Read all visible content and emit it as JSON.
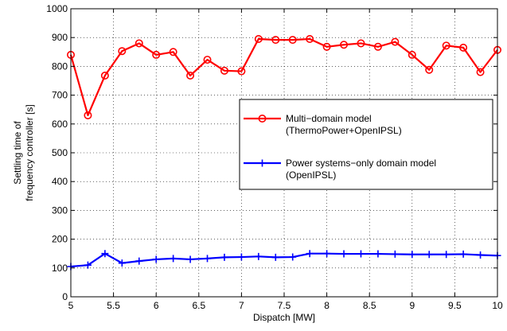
{
  "chart_data": {
    "type": "line",
    "title": "",
    "xlabel": "Dispatch [MW]",
    "ylabel": [
      "Settling time of",
      "frequency controller [s]"
    ],
    "xlim": [
      5,
      10
    ],
    "ylim": [
      0,
      1000
    ],
    "x_ticks": [
      5,
      5.5,
      6,
      6.5,
      7,
      7.5,
      8,
      8.5,
      9,
      9.5,
      10
    ],
    "x_tick_labels": [
      "5",
      "5.5",
      "6",
      "6.5",
      "7",
      "7.5",
      "8",
      "8.5",
      "9",
      "9.5",
      "10"
    ],
    "y_ticks": [
      0,
      100,
      200,
      300,
      400,
      500,
      600,
      700,
      800,
      900,
      1000
    ],
    "y_tick_labels": [
      "0",
      "100",
      "200",
      "300",
      "400",
      "500",
      "600",
      "700",
      "800",
      "900",
      "1000"
    ],
    "grid": true,
    "legend_position": "center-right",
    "x": [
      5,
      5.2,
      5.4,
      5.6,
      5.8,
      6,
      6.2,
      6.4,
      6.6,
      6.8,
      7,
      7.2,
      7.4,
      7.6,
      7.8,
      8,
      8.2,
      8.4,
      8.6,
      8.8,
      9,
      9.2,
      9.4,
      9.6,
      9.8,
      10
    ],
    "series": [
      {
        "name": [
          "Multi−domain model",
          "(ThermoPower+OpenIPSL)"
        ],
        "color": "#ff0000",
        "marker": "circle",
        "values": [
          840,
          630,
          768,
          853,
          880,
          840,
          850,
          768,
          823,
          785,
          783,
          895,
          892,
          892,
          895,
          868,
          875,
          880,
          868,
          885,
          840,
          788,
          872,
          865,
          780,
          857
        ]
      },
      {
        "name": [
          "Power systems−only domain model",
          "(OpenIPSL)"
        ],
        "color": "#0000ff",
        "marker": "plus",
        "values": [
          105,
          110,
          150,
          117,
          124,
          130,
          133,
          130,
          133,
          137,
          138,
          140,
          137,
          138,
          150,
          150,
          149,
          149,
          149,
          148,
          147,
          147,
          147,
          148,
          145,
          143
        ]
      }
    ]
  }
}
